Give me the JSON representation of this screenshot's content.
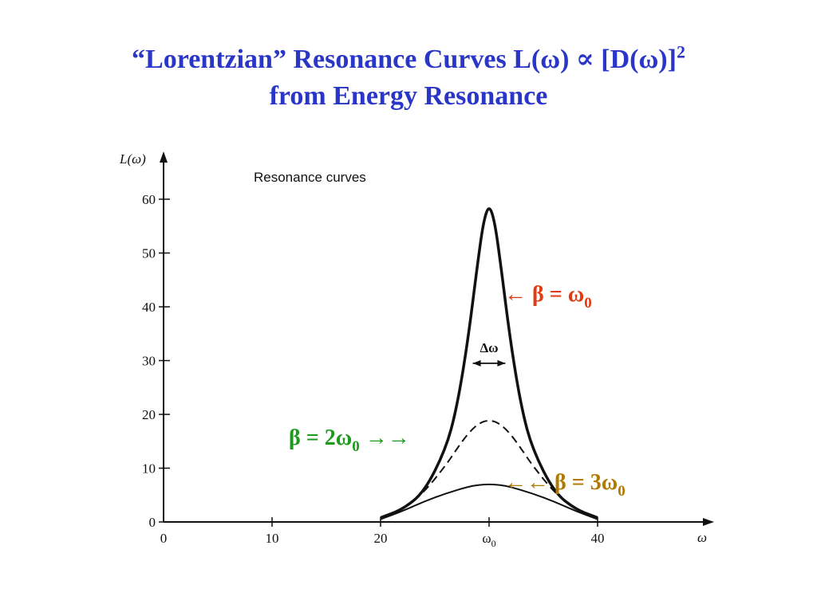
{
  "slide": {
    "title_line1": "“Lorentzian” Resonance Curves L(ω) ∝ [D(ω)]",
    "title_sup": "2",
    "title_line2": "from Energy Resonance"
  },
  "chart_data": {
    "type": "line",
    "title": "Resonance curves",
    "ylabel": "L(ω)",
    "xlabel": "ω",
    "xlim": [
      0,
      50
    ],
    "ylim": [
      0,
      65
    ],
    "x_ticks": [
      "0",
      "10",
      "20",
      "ω0",
      "40"
    ],
    "y_ticks": [
      "0",
      "10",
      "20",
      "30",
      "40",
      "50",
      "60"
    ],
    "omega0": 30,
    "width_label": "Δω",
    "series": [
      {
        "name": "β = ω0",
        "style": "solid-thick",
        "color": "#111111",
        "x": [
          20,
          22,
          24,
          26,
          27,
          28,
          29,
          29.5,
          30,
          30.5,
          31,
          32,
          33,
          34,
          36,
          38,
          40
        ],
        "y": [
          0.8,
          2.3,
          5.5,
          13.5,
          21,
          33,
          49,
          56,
          59,
          56,
          49,
          33,
          21,
          13.5,
          5.5,
          2.3,
          0.8
        ]
      },
      {
        "name": "β = 2ω0",
        "style": "dashed",
        "color": "#111111",
        "x": [
          20,
          22,
          24,
          26,
          27,
          28,
          29,
          30,
          31,
          32,
          33,
          34,
          36,
          38,
          40
        ],
        "y": [
          0.5,
          2.2,
          5.5,
          10.5,
          13.5,
          16.3,
          18.3,
          19,
          18.3,
          16.3,
          13.5,
          10.5,
          5.5,
          2.2,
          0.5
        ]
      },
      {
        "name": "β = 3ω0",
        "style": "solid-thin",
        "color": "#111111",
        "x": [
          20,
          22,
          24,
          26,
          28,
          29,
          30,
          31,
          32,
          34,
          36,
          38,
          40
        ],
        "y": [
          0.5,
          2,
          3.8,
          5.3,
          6.5,
          6.9,
          7,
          6.9,
          6.5,
          5.3,
          3.8,
          2,
          0.5
        ]
      }
    ],
    "annotations": [
      {
        "text": "← β = ω",
        "sub": "0",
        "color": "#e23b12"
      },
      {
        "text": "β = 2ω",
        "sub": "0",
        "suffix": " →→",
        "color": "#1e9a1e"
      },
      {
        "text": "←← β = 3ω",
        "sub": "0",
        "color": "#b07a00"
      }
    ]
  }
}
